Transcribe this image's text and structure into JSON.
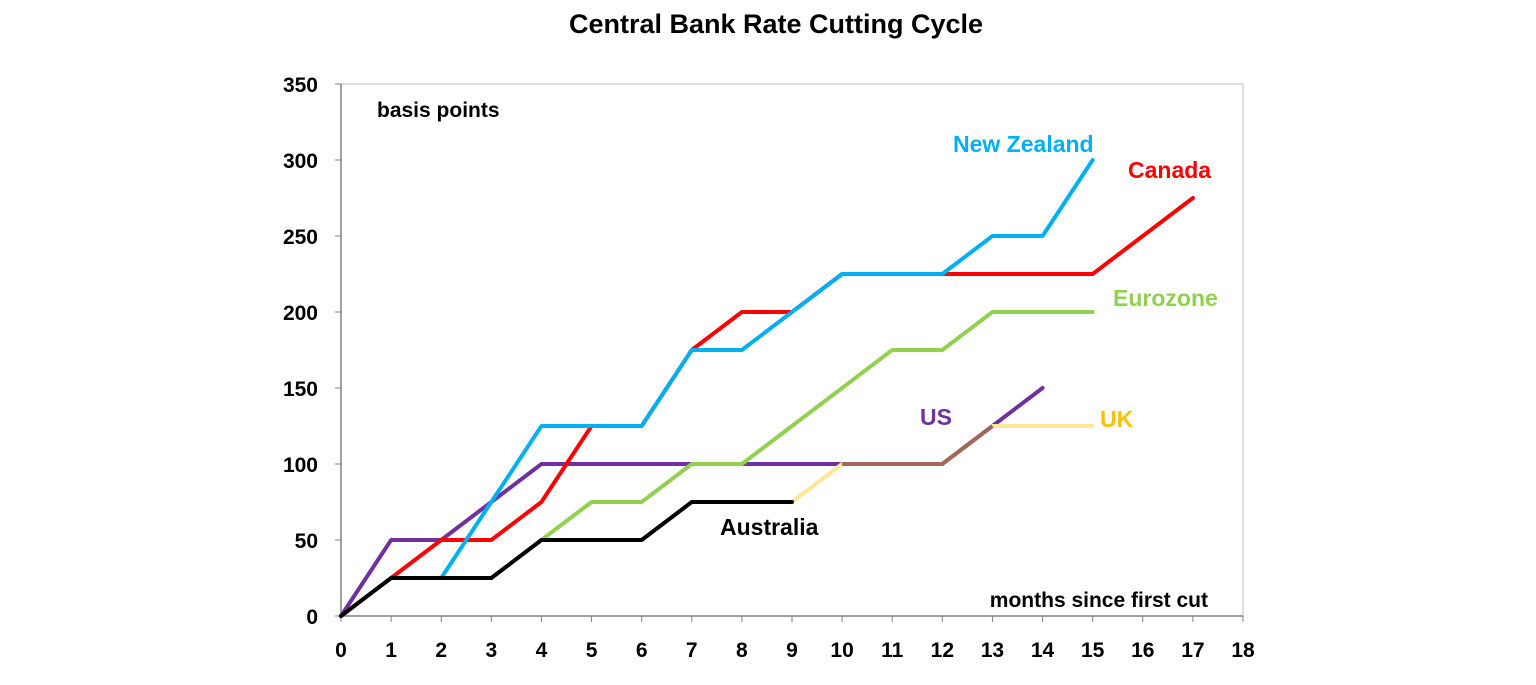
{
  "chart_data": {
    "type": "line",
    "title": "Central Bank Rate Cutting Cycle",
    "ylabel": "basis points",
    "xlabel": "months since first cut",
    "xlim": [
      0,
      18
    ],
    "ylim": [
      0,
      350
    ],
    "x_ticks": [
      "0",
      "1",
      "2",
      "3",
      "4",
      "5",
      "6",
      "7",
      "8",
      "9",
      "10",
      "11",
      "12",
      "13",
      "14",
      "15",
      "16",
      "17",
      "18"
    ],
    "y_ticks": [
      "0",
      "50",
      "100",
      "150",
      "200",
      "250",
      "300",
      "350"
    ],
    "grid": false,
    "legend": "inline labels at line ends",
    "overlap_color": "#A0685A",
    "series": [
      {
        "name": "US",
        "color": "#7030A0",
        "x": [
          0,
          1,
          2,
          3,
          4,
          5,
          6,
          7,
          8,
          9,
          10,
          11,
          12,
          13,
          14
        ],
        "y": [
          0,
          50,
          50,
          75,
          100,
          100,
          100,
          100,
          100,
          100,
          100,
          100,
          100,
          125,
          150
        ]
      },
      {
        "name": "UK",
        "color": "#FFE699",
        "label_color": "#FFC000",
        "x": [
          9,
          10,
          11,
          12,
          13,
          14,
          15
        ],
        "y": [
          75,
          100,
          100,
          100,
          125,
          125,
          125
        ]
      },
      {
        "name": "Canada",
        "color": "#FF0000",
        "x": [
          0,
          1,
          2,
          3,
          4,
          5,
          6,
          7,
          8,
          9,
          10,
          11,
          12,
          13,
          14,
          15,
          16,
          17
        ],
        "y": [
          0,
          25,
          50,
          50,
          75,
          125,
          125,
          175,
          200,
          200,
          225,
          225,
          225,
          225,
          225,
          225,
          250,
          275
        ]
      },
      {
        "name": "Eurozone",
        "color": "#92D050",
        "x": [
          0,
          1,
          2,
          3,
          4,
          5,
          6,
          7,
          8,
          9,
          10,
          11,
          12,
          13,
          14,
          15
        ],
        "y": [
          0,
          25,
          25,
          25,
          50,
          75,
          75,
          100,
          100,
          125,
          150,
          175,
          175,
          200,
          200,
          200
        ]
      },
      {
        "name": "New Zealand",
        "color": "#00B0F0",
        "x": [
          2,
          3,
          4,
          5,
          6,
          7,
          8,
          9,
          10,
          11,
          12,
          13,
          14,
          15
        ],
        "y": [
          25,
          75,
          125,
          125,
          125,
          175,
          175,
          200,
          225,
          225,
          225,
          250,
          250,
          300
        ]
      },
      {
        "name": "Australia",
        "color": "#000000",
        "x": [
          0,
          1,
          2,
          3,
          4,
          5,
          6,
          7,
          8,
          9
        ],
        "y": [
          0,
          25,
          25,
          25,
          50,
          50,
          50,
          75,
          75,
          75
        ]
      }
    ]
  }
}
